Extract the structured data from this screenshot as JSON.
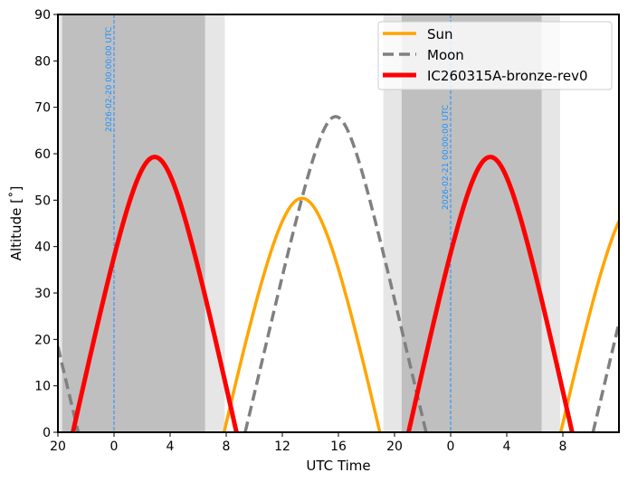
{
  "chart_data": {
    "type": "line",
    "title": "",
    "xlabel": "UTC Time",
    "ylabel_display": "Altitude [˚]",
    "xlim_hours": [
      -4,
      36
    ],
    "ylim": [
      0,
      90
    ],
    "x_ticks": [
      {
        "hour": -4,
        "label": "20"
      },
      {
        "hour": 0,
        "label": "0"
      },
      {
        "hour": 4,
        "label": "4"
      },
      {
        "hour": 8,
        "label": "8"
      },
      {
        "hour": 12,
        "label": "12"
      },
      {
        "hour": 16,
        "label": "16"
      },
      {
        "hour": 20,
        "label": "20"
      },
      {
        "hour": 24,
        "label": "0"
      },
      {
        "hour": 28,
        "label": "4"
      },
      {
        "hour": 32,
        "label": "8"
      }
    ],
    "y_ticks": [
      0,
      10,
      20,
      30,
      40,
      50,
      60,
      70,
      80,
      90
    ],
    "legend": {
      "placement": "top-right",
      "entries": [
        "Sun",
        "Moon",
        "IC260315A-bronze-rev0"
      ]
    },
    "series": [
      {
        "name": "Sun",
        "color": "#ffa500",
        "style": "solid",
        "transit_hour": 13.4,
        "peak_altitude": 50.4,
        "half_day_hours": 5.55,
        "period_hours": 24.0
      },
      {
        "name": "Moon",
        "color": "#808080",
        "style": "dashed",
        "transit_hour": 15.8,
        "peak_altitude": 68.0,
        "half_day_hours": 6.45,
        "period_hours": 24.8
      },
      {
        "name": "IC260315A-bronze-rev0",
        "color": "#ff0000",
        "style": "solid",
        "transit_hour": 2.9,
        "peak_altitude": 59.3,
        "half_day_hours": 5.83,
        "period_hours": 23.93
      }
    ],
    "shading": [
      {
        "type": "twilight",
        "from": -4,
        "to": -3.7
      },
      {
        "type": "night",
        "from": -3.7,
        "to": 6.5
      },
      {
        "type": "twilight",
        "from": 6.5,
        "to": 7.9
      },
      {
        "type": "twilight",
        "from": 19.2,
        "to": 20.5
      },
      {
        "type": "night",
        "from": 20.5,
        "to": 30.5
      },
      {
        "type": "twilight",
        "from": 30.5,
        "to": 31.8
      }
    ],
    "date_markers": [
      {
        "hour": 0,
        "label": "2026-02-20 00:00:00 UTC"
      },
      {
        "hour": 24,
        "label": "2026-02-21 00:00:00 UTC"
      }
    ],
    "colors": {
      "night": "#bfbfbf",
      "twilight": "#e6e6e6",
      "marker": "#1e90ff"
    }
  }
}
